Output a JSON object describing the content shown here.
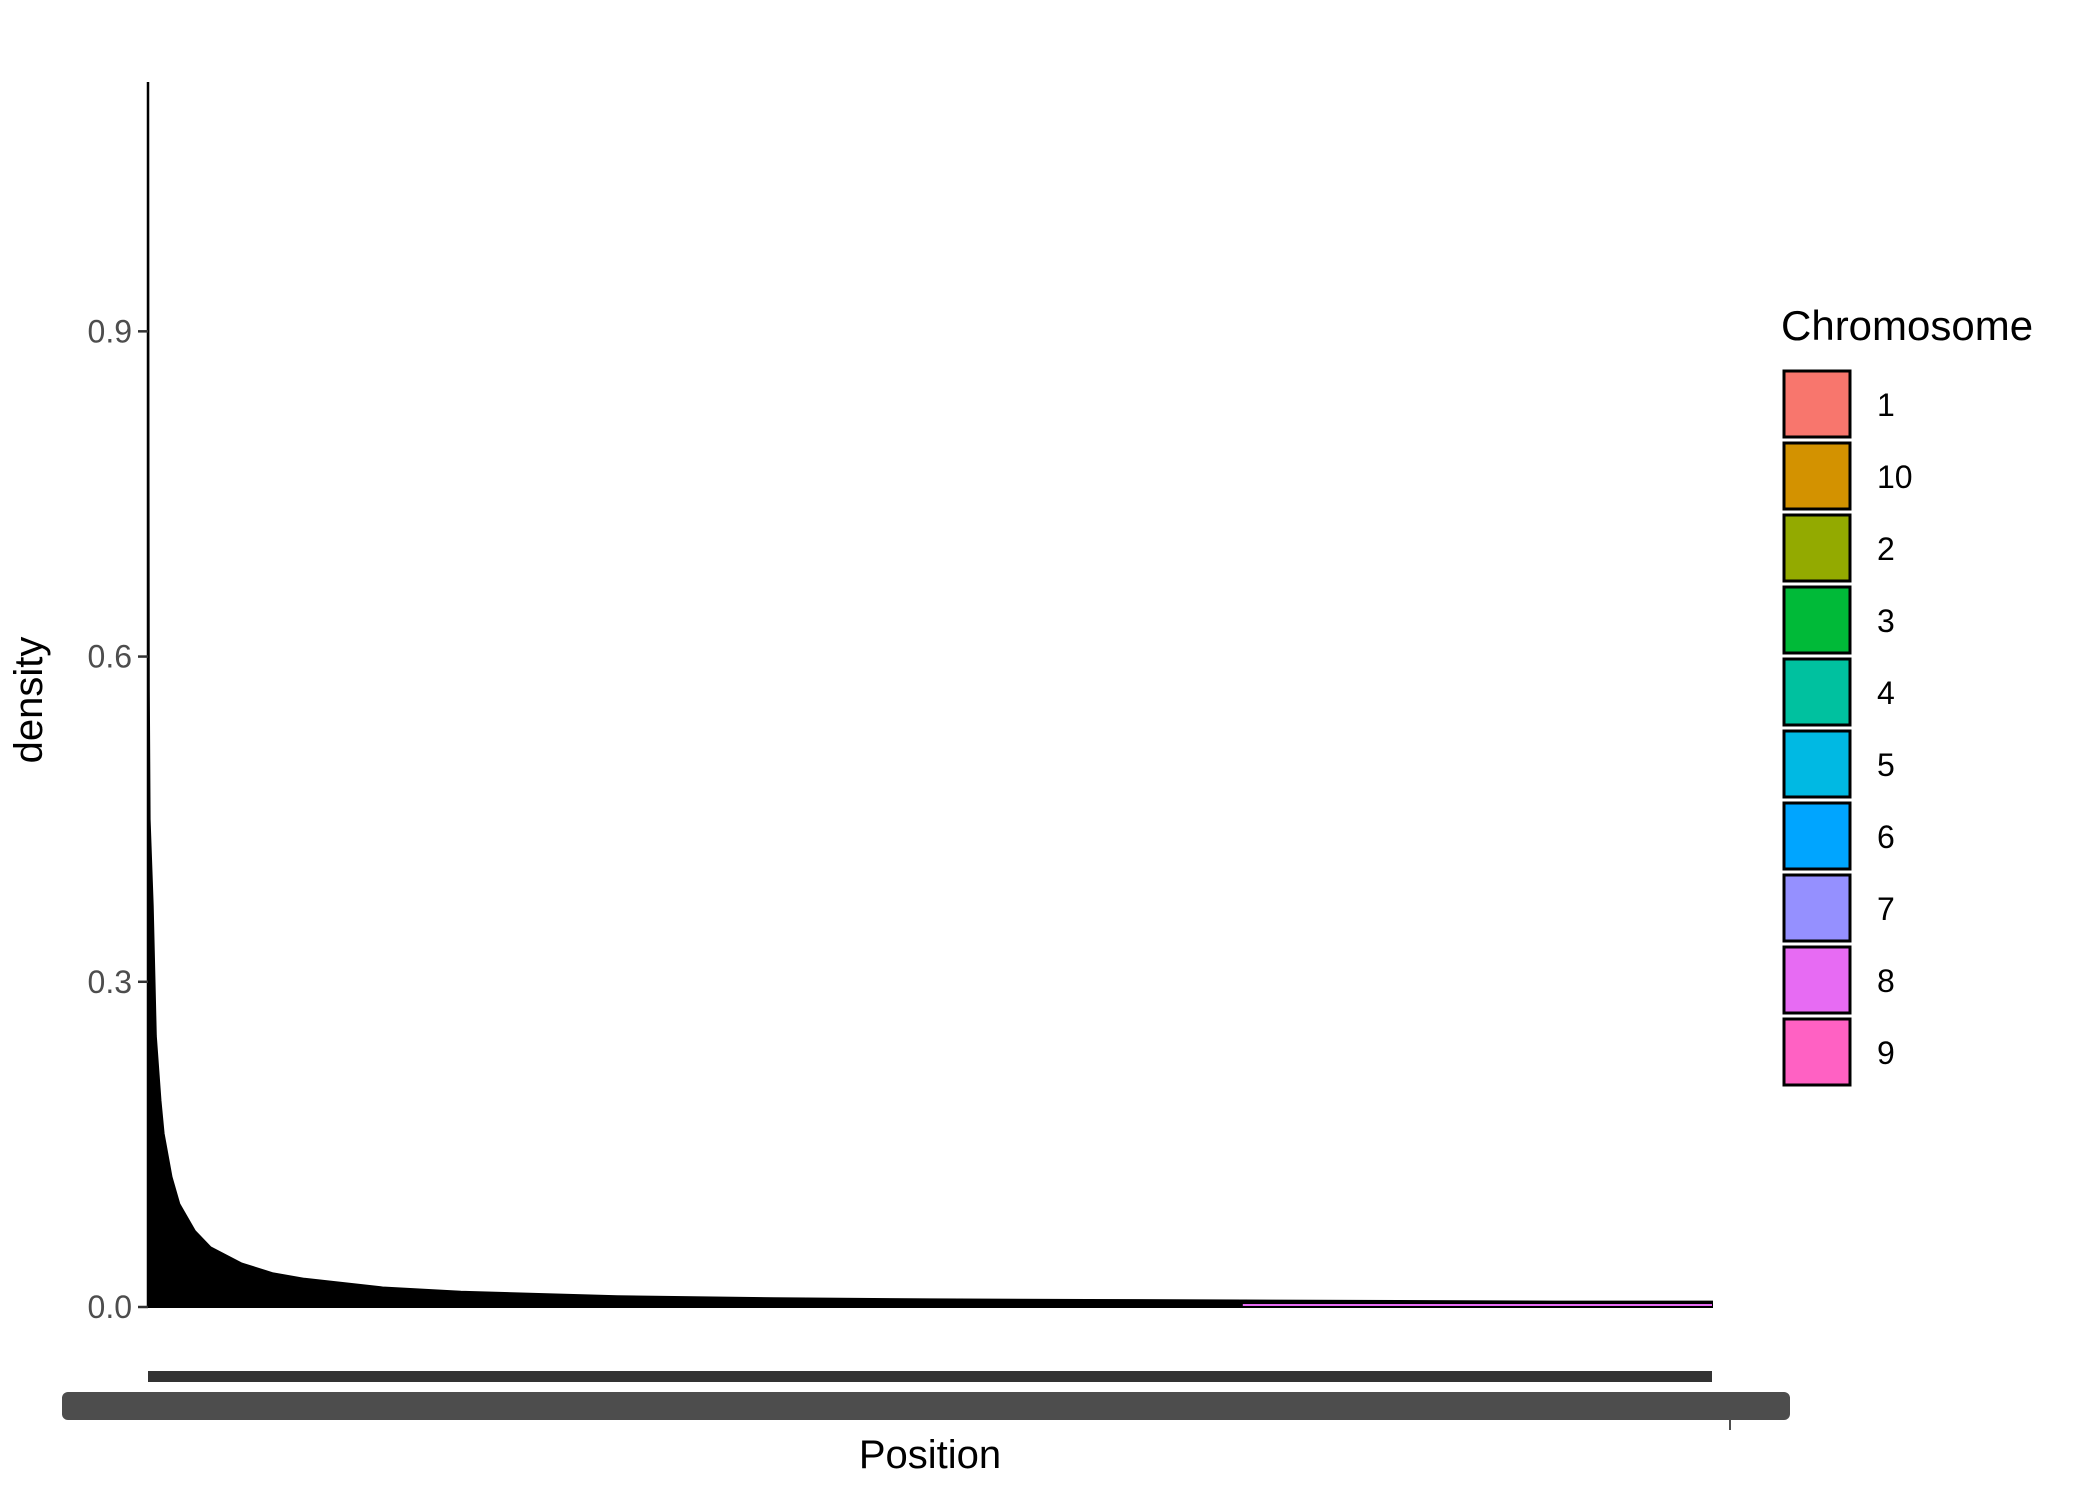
{
  "chart_data": {
    "type": "area",
    "xlabel": "Position",
    "ylabel": "density",
    "y_ticks": [
      "0.0",
      "0.3",
      "0.6",
      "0.9"
    ],
    "ylim": [
      0,
      1.13
    ],
    "x_tick_labels_overplotted": true,
    "grid": false,
    "legend": {
      "title": "Chromosome",
      "placement": "right",
      "entries": [
        {
          "label": "1",
          "color": "#F8766D"
        },
        {
          "label": "10",
          "color": "#D39200"
        },
        {
          "label": "2",
          "color": "#93AA00"
        },
        {
          "label": "3",
          "color": "#00BA38"
        },
        {
          "label": "4",
          "color": "#00C19F"
        },
        {
          "label": "5",
          "color": "#00B9E3"
        },
        {
          "label": "6",
          "color": "#00A5FF"
        },
        {
          "label": "7",
          "color": "#9590FF"
        },
        {
          "label": "8",
          "color": "#E76BF3"
        },
        {
          "label": "9",
          "color": "#FF61C3"
        }
      ]
    },
    "series": [
      {
        "fill": "#000000",
        "x_fraction": [
          0,
          0.0005,
          0.001,
          0.003,
          0.005,
          0.008,
          0.01,
          0.015,
          0.02,
          0.03,
          0.04,
          0.06,
          0.08,
          0.1,
          0.15,
          0.2,
          0.3,
          0.4,
          0.5,
          0.6,
          0.7,
          0.8,
          0.9,
          1.0
        ],
        "density": [
          1.12,
          0.57,
          0.45,
          0.37,
          0.25,
          0.19,
          0.16,
          0.12,
          0.095,
          0.07,
          0.055,
          0.04,
          0.031,
          0.026,
          0.018,
          0.014,
          0.01,
          0.008,
          0.007,
          0.0065,
          0.006,
          0.0055,
          0.005,
          0.005
        ]
      }
    ]
  }
}
